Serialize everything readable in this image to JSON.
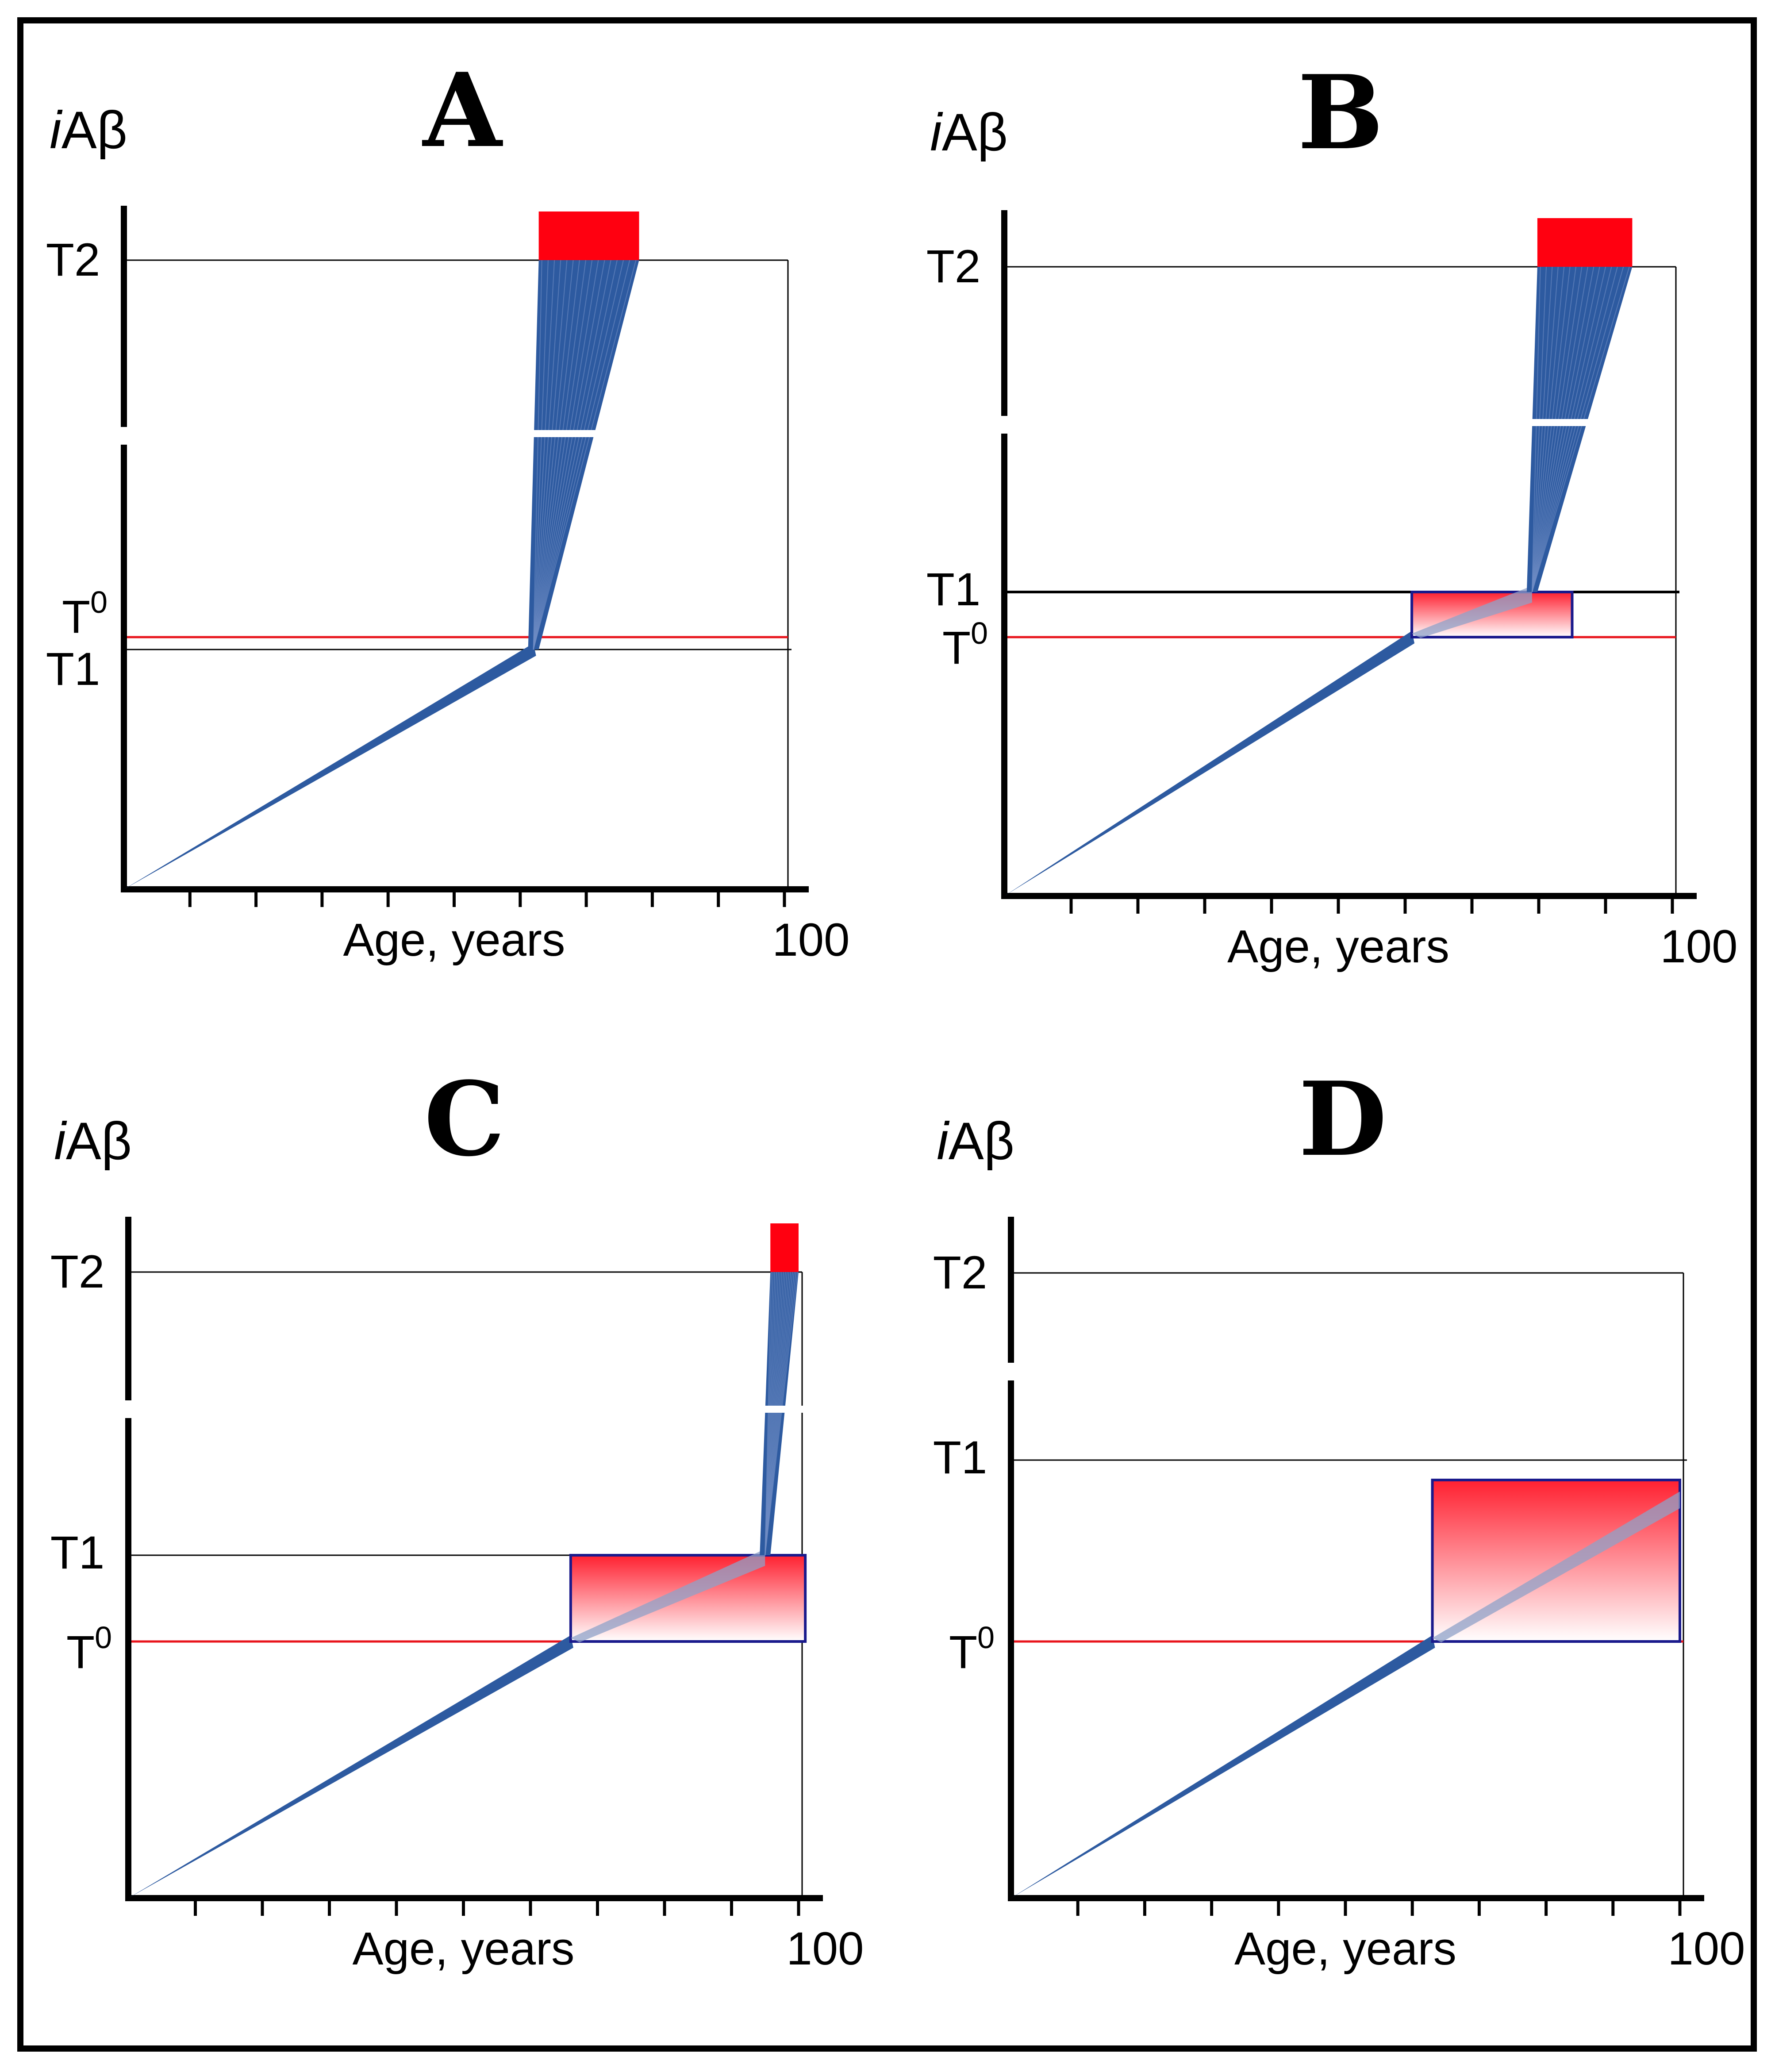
{
  "figure": {
    "description_labels": {
      "y_axis": "iAβ",
      "y_axis_italic_part": "i",
      "y_axis_rest": "Aβ",
      "x_axis": "Age, years",
      "x_max": "100",
      "t2": "T2",
      "t1": "T1",
      "t0_base": "T",
      "t0_sup": "0"
    },
    "colors": {
      "trajectory": "#2d5aa0",
      "t0_line": "#e8141c",
      "threshold_line": "#000000",
      "disease_block": "#ff0010",
      "box_border": "#1a1a8c"
    }
  },
  "panels": [
    {
      "id": "A",
      "letter": "A",
      "age_t0": 58,
      "age_t1": 62,
      "age_end": 78,
      "t1_above_t0": false,
      "has_box": false,
      "has_red_block": true
    },
    {
      "id": "B",
      "letter": "B",
      "age_t0": 61,
      "age_t1": 79,
      "age_end": 94,
      "t1_above_t0": true,
      "has_box": true,
      "has_red_block": true
    },
    {
      "id": "C",
      "letter": "C",
      "age_t0": 66,
      "age_t1": 95,
      "age_end": 100,
      "t1_above_t0": true,
      "has_box": true,
      "has_red_block": true
    },
    {
      "id": "D",
      "letter": "D",
      "age_t0": 63,
      "age_t1": 100,
      "age_end": 100,
      "t1_above_t0": true,
      "has_box": true,
      "has_red_block": false
    }
  ]
}
